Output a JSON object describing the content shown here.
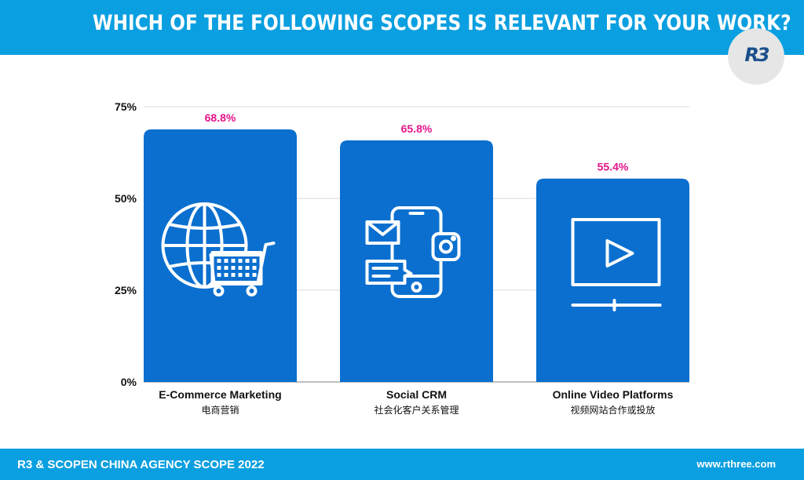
{
  "header": {
    "title": "WHICH OF THE FOLLOWING SCOPES IS RELEVANT FOR YOUR WORK?",
    "logo_text": "R3",
    "bar_color": "#0a9fe0"
  },
  "footer": {
    "left_text": "R3 & SCOPEN CHINA AGENCY SCOPE 2022",
    "right_text": "www.rthree.com"
  },
  "chart_data": {
    "type": "bar",
    "title": "",
    "xlabel": "",
    "ylabel": "",
    "ylim": [
      0,
      75
    ],
    "yticks": [
      0,
      25,
      50,
      75
    ],
    "ytick_labels": [
      "0%",
      "25%",
      "50%",
      "75%"
    ],
    "grid": true,
    "categories": [
      "E-Commerce Marketing",
      "Social CRM",
      "Online Video Platforms"
    ],
    "categories_cn": [
      "电商营销",
      "社会化客户关系管理",
      "视频网站合作或投放"
    ],
    "values": [
      68.8,
      65.8,
      55.4
    ],
    "value_labels": [
      "68.8%",
      "65.8%",
      "55.4%"
    ],
    "icons": [
      "globe-cart-icon",
      "smartphone-social-icon",
      "video-player-icon"
    ],
    "bar_color": "#0a6fcf",
    "value_label_color": "#e2158a"
  }
}
